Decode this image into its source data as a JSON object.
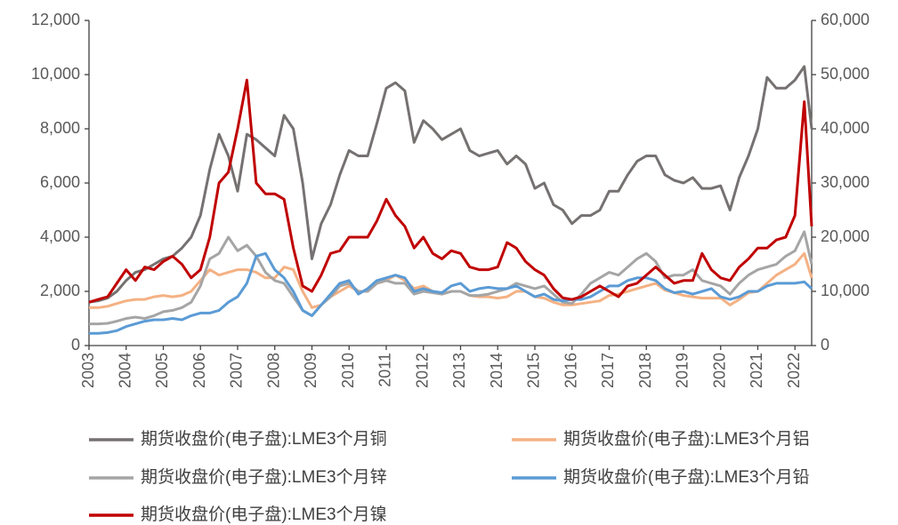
{
  "chart_data": {
    "type": "line",
    "x": [
      2003,
      2003.25,
      2003.5,
      2003.75,
      2004,
      2004.25,
      2004.5,
      2004.75,
      2005,
      2005.25,
      2005.5,
      2005.75,
      2006,
      2006.25,
      2006.5,
      2006.75,
      2007,
      2007.25,
      2007.5,
      2007.75,
      2008,
      2008.25,
      2008.5,
      2008.75,
      2009,
      2009.25,
      2009.5,
      2009.75,
      2010,
      2010.25,
      2010.5,
      2010.75,
      2011,
      2011.25,
      2011.5,
      2011.75,
      2012,
      2012.25,
      2012.5,
      2012.75,
      2013,
      2013.25,
      2013.5,
      2013.75,
      2014,
      2014.25,
      2014.5,
      2014.75,
      2015,
      2015.25,
      2015.5,
      2015.75,
      2016,
      2016.25,
      2016.5,
      2016.75,
      2017,
      2017.25,
      2017.5,
      2017.75,
      2018,
      2018.25,
      2018.5,
      2018.75,
      2019,
      2019.25,
      2019.5,
      2019.75,
      2020,
      2020.25,
      2020.5,
      2020.75,
      2021,
      2021.25,
      2021.5,
      2021.75,
      2022,
      2022.25,
      2022.45
    ],
    "series": [
      {
        "name": "期货收盘价(电子盘):LME3个月铜",
        "color": "#767171",
        "values": [
          1600,
          1650,
          1750,
          2000,
          2400,
          2700,
          2800,
          3000,
          3200,
          3300,
          3600,
          4000,
          4800,
          6500,
          7800,
          7000,
          5700,
          7800,
          7600,
          7300,
          7000,
          8500,
          8000,
          6000,
          3200,
          4500,
          5200,
          6300,
          7200,
          7000,
          7000,
          8200,
          9500,
          9700,
          9400,
          7500,
          8300,
          8000,
          7600,
          7800,
          8000,
          7200,
          7000,
          7100,
          7200,
          6700,
          7000,
          6700,
          5800,
          6000,
          5200,
          5000,
          4500,
          4800,
          4800,
          5000,
          5700,
          5700,
          6300,
          6800,
          7000,
          7000,
          6300,
          6100,
          6000,
          6200,
          5800,
          5800,
          5900,
          5000,
          6200,
          7000,
          8000,
          9900,
          9500,
          9500,
          9800,
          10300,
          8000
        ]
      },
      {
        "name": "期货收盘价(电子盘):LME3个月铝",
        "color": "#f4b183",
        "values": [
          1400,
          1400,
          1450,
          1550,
          1650,
          1700,
          1700,
          1800,
          1850,
          1800,
          1850,
          2000,
          2400,
          2800,
          2600,
          2700,
          2800,
          2800,
          2700,
          2500,
          2500,
          2900,
          2800,
          2000,
          1400,
          1500,
          1800,
          2000,
          2200,
          2000,
          2000,
          2300,
          2400,
          2600,
          2400,
          2100,
          2200,
          2000,
          1900,
          2000,
          2000,
          1850,
          1800,
          1800,
          1750,
          1800,
          2000,
          2000,
          1800,
          1750,
          1600,
          1500,
          1500,
          1550,
          1600,
          1650,
          1850,
          1900,
          2000,
          2100,
          2200,
          2300,
          2050,
          1950,
          1850,
          1800,
          1750,
          1750,
          1750,
          1500,
          1700,
          1950,
          2000,
          2300,
          2600,
          2800,
          3000,
          3400,
          2500
        ]
      },
      {
        "name": "期货收盘价(电子盘):LME3个月锌",
        "color": "#a5a5a5",
        "values": [
          800,
          800,
          820,
          900,
          1000,
          1050,
          1000,
          1100,
          1250,
          1300,
          1400,
          1600,
          2200,
          3200,
          3400,
          4000,
          3500,
          3700,
          3300,
          2700,
          2400,
          2300,
          1800,
          1300,
          1100,
          1500,
          1800,
          2200,
          2300,
          2000,
          2000,
          2300,
          2400,
          2300,
          2300,
          1900,
          2000,
          1950,
          1900,
          2000,
          2000,
          1850,
          1850,
          1900,
          2000,
          2100,
          2300,
          2200,
          2100,
          2200,
          1900,
          1600,
          1550,
          1900,
          2300,
          2500,
          2700,
          2600,
          2900,
          3200,
          3400,
          3100,
          2500,
          2600,
          2600,
          2800,
          2400,
          2300,
          2200,
          1900,
          2300,
          2600,
          2800,
          2900,
          3000,
          3300,
          3500,
          4200,
          3000
        ]
      },
      {
        "name": "期货收盘价(电子盘):LME3个月铅",
        "color": "#5b9bd5",
        "values": [
          450,
          450,
          480,
          550,
          700,
          800,
          900,
          950,
          950,
          1000,
          950,
          1100,
          1200,
          1200,
          1300,
          1600,
          1800,
          2300,
          3300,
          3400,
          2800,
          2500,
          2000,
          1300,
          1100,
          1500,
          1900,
          2300,
          2400,
          1900,
          2100,
          2400,
          2500,
          2600,
          2500,
          2000,
          2100,
          2000,
          1950,
          2200,
          2300,
          2000,
          2100,
          2150,
          2100,
          2100,
          2200,
          2000,
          1800,
          1900,
          1700,
          1650,
          1700,
          1700,
          1800,
          2000,
          2200,
          2200,
          2400,
          2500,
          2500,
          2400,
          2100,
          1950,
          2000,
          1900,
          2000,
          2100,
          1800,
          1700,
          1800,
          2000,
          2000,
          2200,
          2300,
          2300,
          2300,
          2350,
          2100
        ]
      },
      {
        "name": "期货收盘价(电子盘):LME3个月镍",
        "color": "#c00000",
        "axis": "y2",
        "values": [
          8000,
          8500,
          9000,
          11500,
          14000,
          12000,
          14500,
          14000,
          15500,
          16500,
          15000,
          12500,
          14000,
          20000,
          30000,
          32000,
          40000,
          49000,
          30000,
          28000,
          28000,
          27000,
          18000,
          11000,
          10000,
          13000,
          17000,
          17500,
          20000,
          20000,
          20000,
          23000,
          27000,
          24000,
          22000,
          18000,
          20000,
          17000,
          16000,
          17500,
          17000,
          14500,
          14000,
          14000,
          14500,
          19000,
          18000,
          15500,
          14000,
          13000,
          10500,
          8800,
          8500,
          9000,
          10000,
          11000,
          10000,
          9000,
          11000,
          11500,
          13000,
          14500,
          13000,
          11500,
          12000,
          12000,
          17000,
          14000,
          12500,
          12000,
          14500,
          16000,
          18000,
          18000,
          19500,
          20000,
          24000,
          45000,
          22000
        ]
      }
    ],
    "xlim": [
      2003,
      2022.45
    ],
    "xticks": [
      2003,
      2004,
      2005,
      2006,
      2007,
      2008,
      2009,
      2010,
      2011,
      2012,
      2013,
      2014,
      2015,
      2016,
      2017,
      2018,
      2019,
      2020,
      2021,
      2022
    ],
    "ylim": [
      0,
      12000
    ],
    "yticks": [
      0,
      {
        "value": 2000,
        "label": "2,000"
      },
      {
        "value": 4000,
        "label": "4,000"
      },
      {
        "value": 6000,
        "label": "6,000"
      },
      {
        "value": 8000,
        "label": "8,000"
      },
      {
        "value": 10000,
        "label": "10,000"
      },
      {
        "value": 12000,
        "label": "12,000"
      }
    ],
    "y2lim": [
      0,
      60000
    ],
    "y2ticks": [
      0,
      {
        "value": 10000,
        "label": "10,000"
      },
      {
        "value": 20000,
        "label": "20,000"
      },
      {
        "value": 30000,
        "label": "30,000"
      },
      {
        "value": 40000,
        "label": "40,000"
      },
      {
        "value": 50000,
        "label": "50,000"
      },
      {
        "value": 60000,
        "label": "60,000"
      }
    ],
    "grid": false,
    "legend": "bottom"
  }
}
